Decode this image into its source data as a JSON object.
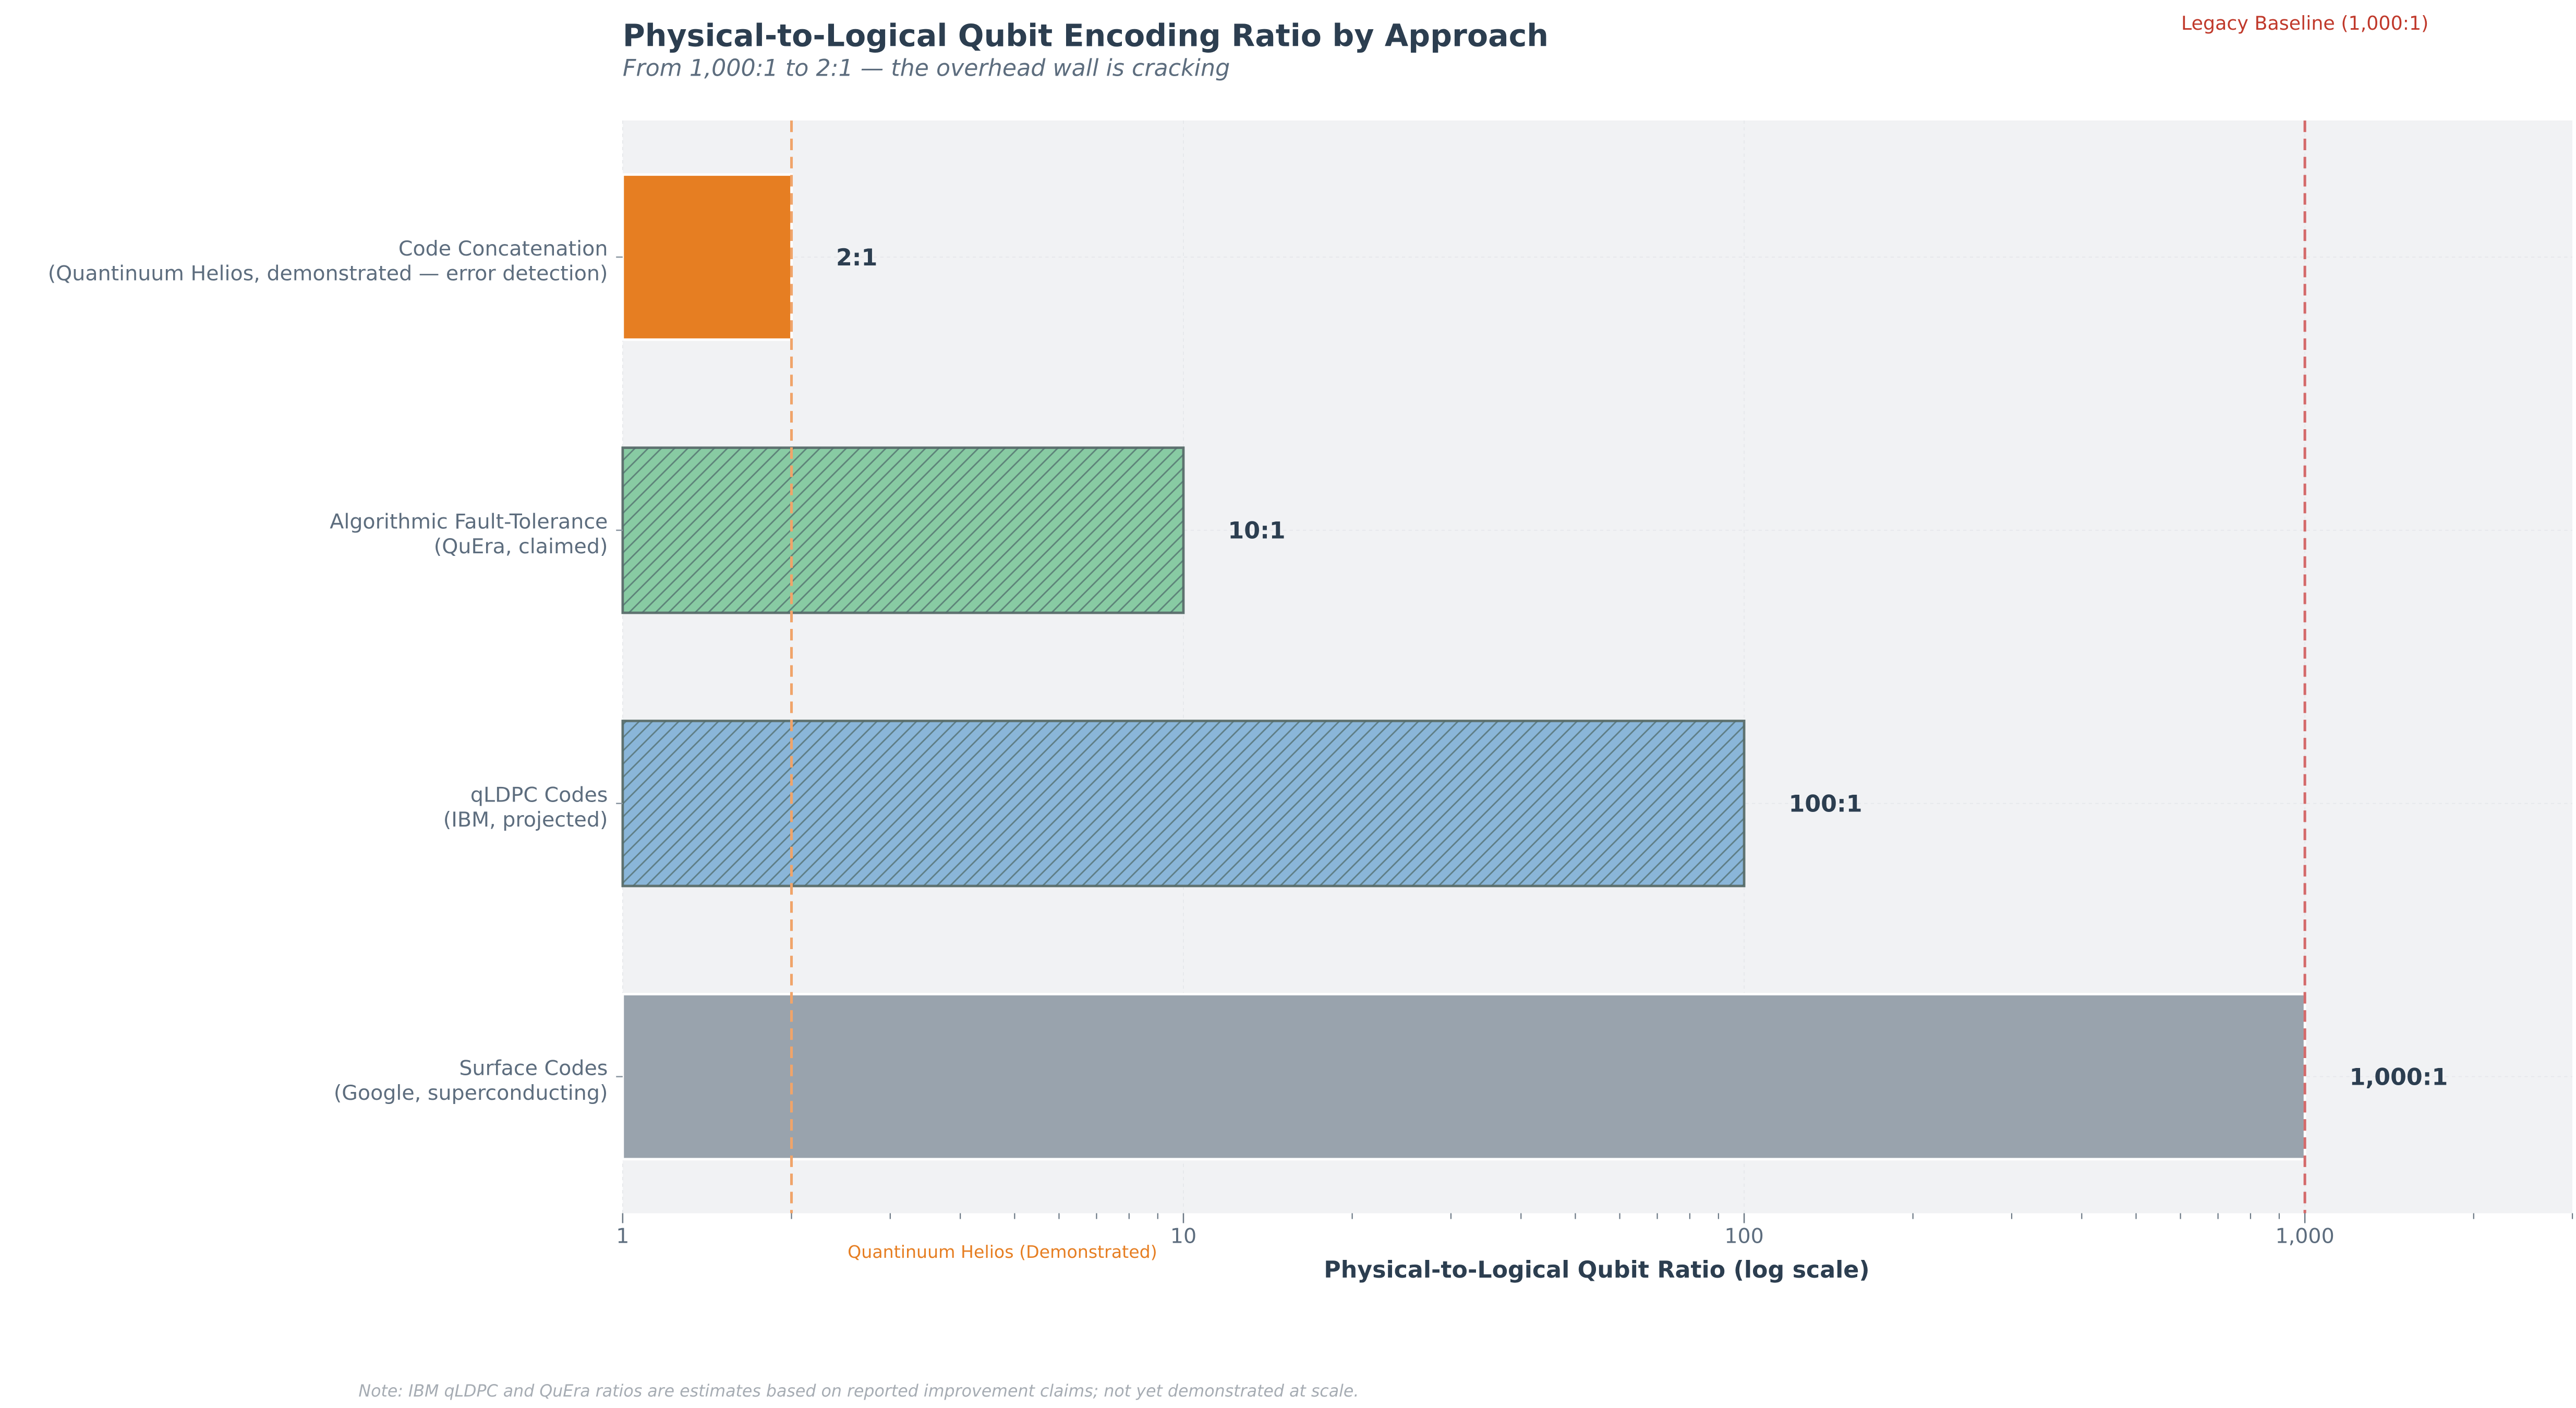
{
  "chart_data": {
    "type": "bar",
    "orientation": "horizontal",
    "title": "Physical-to-Logical Qubit Encoding Ratio by Approach",
    "subtitle": "From 1,000:1 to 2:1 — the overhead wall is cracking",
    "xlabel": "Physical-to-Logical Qubit Ratio (log scale)",
    "ylabel": "",
    "xscale": "log",
    "xlim": [
      1,
      3000
    ],
    "xticks": [
      1,
      10,
      100,
      1000
    ],
    "xtick_labels": [
      "1",
      "10",
      "100",
      "1,000"
    ],
    "grid": true,
    "categories": [
      {
        "line1": "Code Concatenation",
        "line2": "(Quantinuum Helios, demonstrated — error detection)"
      },
      {
        "line1": "Algorithmic Fault-Tolerance",
        "line2": "(QuEra, claimed)"
      },
      {
        "line1": "qLDPC Codes",
        "line2": "(IBM, projected)"
      },
      {
        "line1": "Surface Codes",
        "line2": "(Google, superconducting)"
      }
    ],
    "values": [
      2,
      10,
      100,
      1000
    ],
    "value_labels": [
      "2:1",
      "10:1",
      "100:1",
      "1,000:1"
    ],
    "bar_colors": [
      "#E67E22",
      "#88CBA3",
      "#8AB6D9",
      "#99A3AD"
    ],
    "hatched": [
      false,
      true,
      true,
      false
    ],
    "reference_lines": [
      {
        "value": 2,
        "label": "Quantinuum Helios (Demonstrated)",
        "color": "#E67E22",
        "style": "dashed"
      },
      {
        "value": 1000,
        "label": "Legacy Baseline (1,000:1)",
        "color": "#C0392B",
        "style": "dashed"
      }
    ],
    "note": "Note: IBM qLDPC and QuEra ratios are estimates based on reported improvement claims; not yet demonstrated at scale."
  }
}
